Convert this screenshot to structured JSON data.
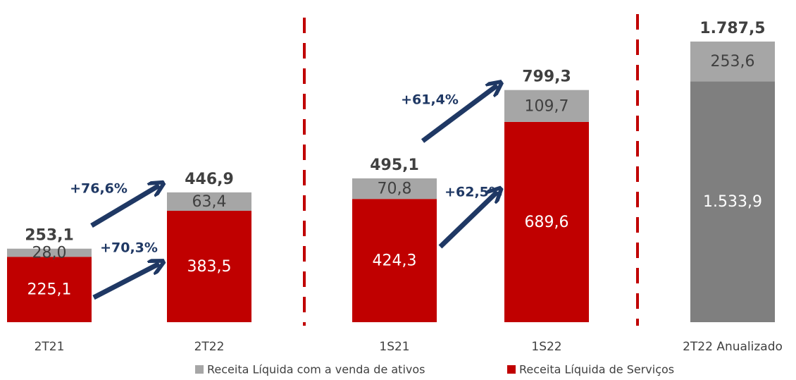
{
  "chart_data": {
    "type": "stacked_bar",
    "categories": [
      "2T21",
      "2T22",
      "1S21",
      "1S22",
      "2T22 Anualizado"
    ],
    "series": [
      {
        "name": "Receita Líquida de Serviços",
        "color": "#c00000",
        "values": [
          225.1,
          383.5,
          424.3,
          689.6,
          null
        ],
        "value_labels": [
          "225,1",
          "383,5",
          "424,3",
          "689,6",
          null
        ]
      },
      {
        "name": "Receita Líquida com a venda de ativos",
        "color": "#a6a6a6",
        "values": [
          28.0,
          63.4,
          70.8,
          109.7,
          null
        ],
        "value_labels": [
          "28,0",
          "63,4",
          "70,8",
          "109,7",
          null
        ]
      },
      {
        "color": "#7f7f7f",
        "axis": "y2",
        "values": [
          null,
          null,
          null,
          null,
          1533.9
        ],
        "value_labels": [
          null,
          null,
          null,
          null,
          "1.533,9"
        ]
      },
      {
        "color": "#a6a6a6",
        "axis": "y2",
        "values": [
          null,
          null,
          null,
          null,
          253.6
        ],
        "value_labels": [
          null,
          null,
          null,
          null,
          "253,6"
        ]
      }
    ],
    "totals": [
      253.1,
      446.9,
      495.1,
      799.3,
      1787.5
    ],
    "totals_labels": [
      "253,1",
      "446,9",
      "495,1",
      "799,3",
      "1.787,5"
    ],
    "annotations": [
      "+76,6%",
      "+70,3%",
      "+61,4%",
      "+62,5%"
    ],
    "ylim": [
      0,
      1000
    ],
    "y2lim": [
      0,
      1850
    ]
  }
}
